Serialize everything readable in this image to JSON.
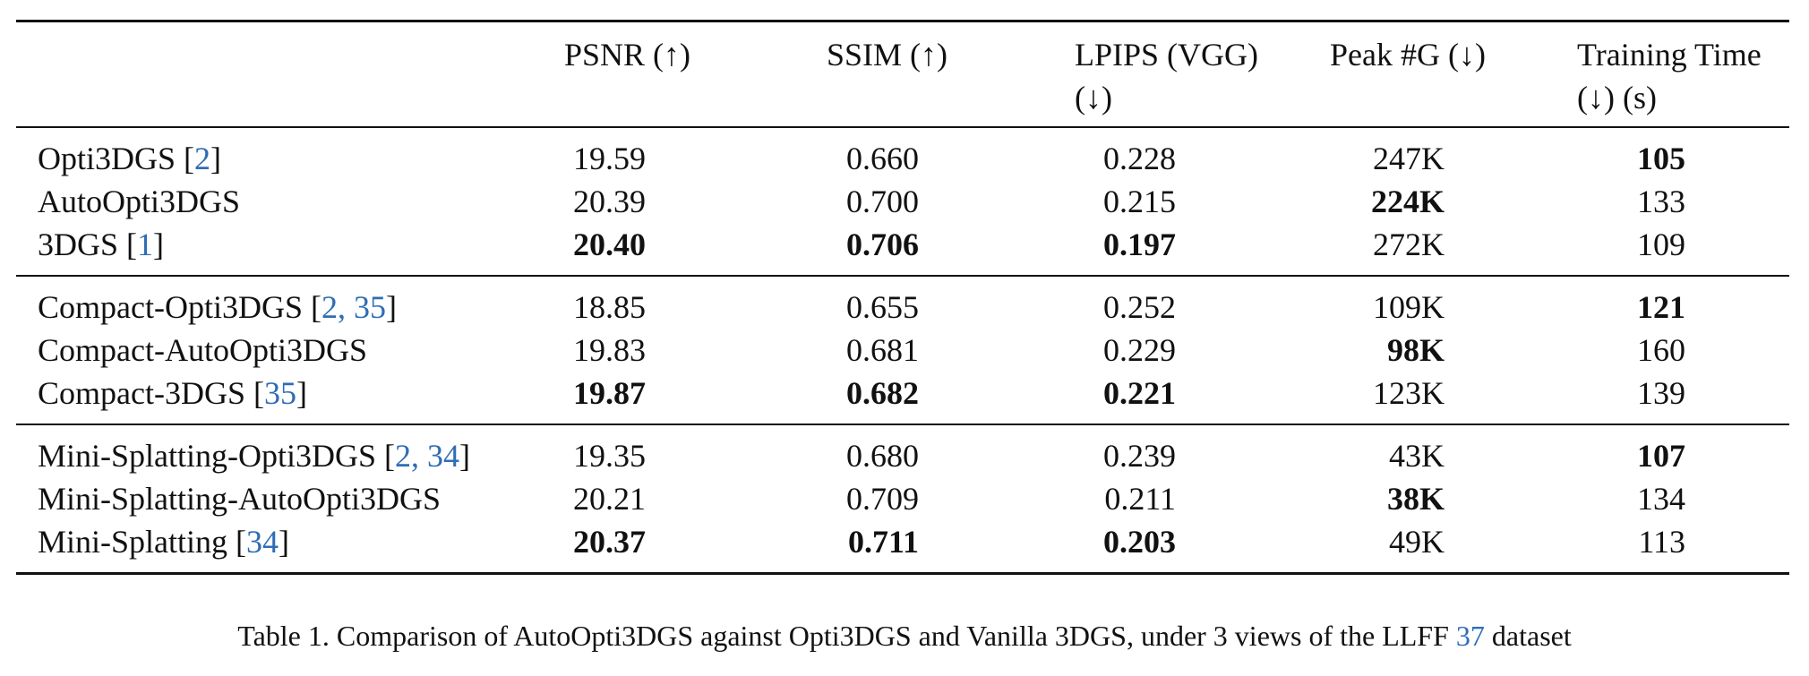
{
  "headers": {
    "method": "",
    "psnr": [
      "PSNR (↑)"
    ],
    "ssim": [
      "SSIM (↑)"
    ],
    "lpips": [
      "LPIPS (VGG)",
      "(↓)"
    ],
    "peak": [
      "Peak #G (↓)"
    ],
    "time": [
      "Training Time",
      "(↓) (s)"
    ]
  },
  "groups": [
    [
      {
        "method": "Opti3DGS ",
        "cite": "2",
        "psnr": "19.59",
        "ssim": "0.660",
        "lpips": "0.228",
        "peak": "247K",
        "time": "105",
        "bold": [
          "time"
        ]
      },
      {
        "method": "AutoOpti3DGS",
        "cite": "",
        "psnr": "20.39",
        "ssim": "0.700",
        "lpips": "0.215",
        "peak": "224K",
        "time": "133",
        "bold": [
          "peak"
        ]
      },
      {
        "method": "3DGS ",
        "cite": "1",
        "psnr": "20.40",
        "ssim": "0.706",
        "lpips": "0.197",
        "peak": "272K",
        "time": "109",
        "bold": [
          "psnr",
          "ssim",
          "lpips"
        ]
      }
    ],
    [
      {
        "method": "Compact-Opti3DGS ",
        "cite": "2, 35",
        "psnr": "18.85",
        "ssim": "0.655",
        "lpips": "0.252",
        "peak": "109K",
        "time": "121",
        "bold": [
          "time"
        ]
      },
      {
        "method": "Compact-AutoOpti3DGS",
        "cite": "",
        "psnr": "19.83",
        "ssim": "0.681",
        "lpips": "0.229",
        "peak": "98K",
        "time": "160",
        "bold": [
          "peak"
        ]
      },
      {
        "method": "Compact-3DGS ",
        "cite": "35",
        "psnr": "19.87",
        "ssim": "0.682",
        "lpips": "0.221",
        "peak": "123K",
        "time": "139",
        "bold": [
          "psnr",
          "ssim",
          "lpips"
        ]
      }
    ],
    [
      {
        "method": "Mini-Splatting-Opti3DGS ",
        "cite": "2, 34",
        "psnr": "19.35",
        "ssim": "0.680",
        "lpips": "0.239",
        "peak": "43K",
        "time": "107",
        "bold": [
          "time"
        ]
      },
      {
        "method": "Mini-Splatting-AutoOpti3DGS",
        "cite": "",
        "psnr": "20.21",
        "ssim": "0.709",
        "lpips": "0.211",
        "peak": "38K",
        "time": "134",
        "bold": [
          "peak"
        ]
      },
      {
        "method": "Mini-Splatting ",
        "cite": "34",
        "psnr": "20.37",
        "ssim": "0.711",
        "lpips": "0.203",
        "peak": "49K",
        "time": "113",
        "bold": [
          "psnr",
          "ssim",
          "lpips"
        ]
      }
    ]
  ],
  "caption": {
    "before": "Table 1. Comparison of AutoOpti3DGS against Opti3DGS and Vanilla 3DGS, under 3 views of the LLFF ",
    "cite": "37",
    "after": " dataset"
  },
  "colors": {
    "citation": "#2f6db5",
    "rule": "#111111"
  }
}
